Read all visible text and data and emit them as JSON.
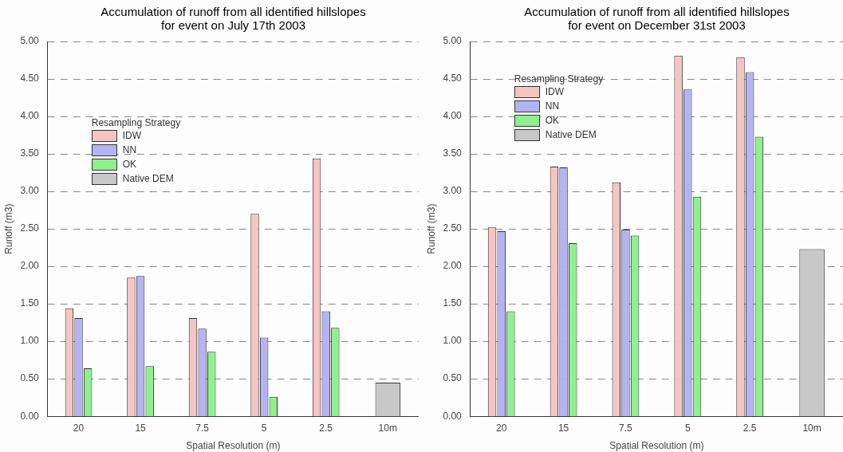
{
  "chart_data": [
    {
      "type": "bar",
      "title": "Accumulation of runoff from all identified hillslopes for event on July 17th 2003",
      "xlabel": "Spatial Resolution (m)",
      "ylabel": "Runoff (m3)",
      "legend_title": "Resampling Strategy",
      "categories": [
        "20",
        "15",
        "7.5",
        "5",
        "2.5",
        "10m"
      ],
      "series": [
        {
          "name": "IDW",
          "color": "#f7c4c4",
          "values": [
            1.44,
            1.85,
            1.31,
            2.7,
            3.44,
            null
          ]
        },
        {
          "name": "NN",
          "color": "#b4b4f4",
          "values": [
            1.31,
            1.87,
            1.17,
            1.05,
            1.4,
            null
          ]
        },
        {
          "name": "OK",
          "color": "#8ef08e",
          "values": [
            0.64,
            0.67,
            0.86,
            0.26,
            1.18,
            null
          ]
        },
        {
          "name": "Native DEM",
          "color": "#c8c8c8",
          "values": [
            null,
            null,
            null,
            null,
            null,
            0.45
          ]
        }
      ],
      "ylim": [
        0,
        5
      ],
      "yticks": [
        {
          "value": 0,
          "label": "0.00"
        },
        {
          "value": 0.5,
          "label": "0.50"
        },
        {
          "value": 1,
          "label": "1.00"
        },
        {
          "value": 1.5,
          "label": "1.50"
        },
        {
          "value": 2,
          "label": "2.00"
        },
        {
          "value": 2.5,
          "label": "2.50"
        },
        {
          "value": 3,
          "label": "3.00"
        },
        {
          "value": 3.5,
          "label": "3.50"
        },
        {
          "value": 4,
          "label": "4.00"
        },
        {
          "value": 4.5,
          "label": "4.50"
        },
        {
          "value": 5,
          "label": "5.00"
        }
      ],
      "grid": "y",
      "legend": "top left"
    },
    {
      "type": "bar",
      "title": "Accumulation of runoff from all identified hillslopes for event on December 31st 2003",
      "xlabel": "Spatial Resolution (m)",
      "ylabel": "Runoff (m3)",
      "legend_title": "Resampling Strategy",
      "categories": [
        "20",
        "15",
        "7.5",
        "5",
        "2.5",
        "10m"
      ],
      "series": [
        {
          "name": "IDW",
          "color": "#f7c4c4",
          "values": [
            2.52,
            3.33,
            3.12,
            4.81,
            4.79,
            null
          ]
        },
        {
          "name": "NN",
          "color": "#b4b4f4",
          "values": [
            2.47,
            3.32,
            2.49,
            4.36,
            4.59,
            null
          ]
        },
        {
          "name": "OK",
          "color": "#8ef08e",
          "values": [
            1.4,
            2.31,
            2.41,
            2.93,
            3.73,
            null
          ]
        },
        {
          "name": "Native DEM",
          "color": "#c8c8c8",
          "values": [
            null,
            null,
            null,
            null,
            null,
            2.23
          ]
        }
      ],
      "ylim": [
        0,
        5
      ],
      "yticks": [
        {
          "value": 0,
          "label": "0.00"
        },
        {
          "value": 0.5,
          "label": "0.50"
        },
        {
          "value": 1,
          "label": "1.00"
        },
        {
          "value": 1.5,
          "label": "1.50"
        },
        {
          "value": 2,
          "label": "2.00"
        },
        {
          "value": 2.5,
          "label": "2.50"
        },
        {
          "value": 3,
          "label": "3.00"
        },
        {
          "value": 3.5,
          "label": "3.50"
        },
        {
          "value": 4,
          "label": "4.00"
        },
        {
          "value": 4.5,
          "label": "4.50"
        },
        {
          "value": 5,
          "label": "5.00"
        }
      ],
      "grid": "y",
      "legend": "top left"
    }
  ]
}
